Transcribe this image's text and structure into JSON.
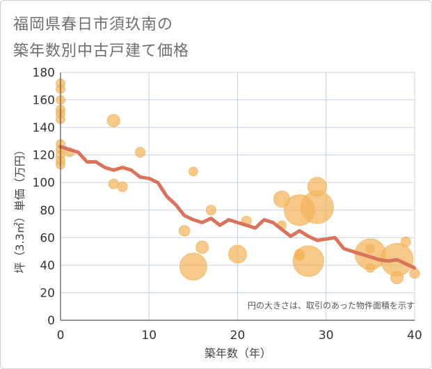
{
  "title_line1": "福岡県春日市須玖南の",
  "title_line2": "築年数別中古戸建て価格",
  "chart_data": {
    "type": "scatter",
    "xlabel": "築年数（年）",
    "ylabel": "坪（3.3㎡）単価（万円）",
    "xlim": [
      0,
      40
    ],
    "ylim": [
      0,
      180
    ],
    "xticks": [
      "0",
      "10",
      "20",
      "30",
      "40"
    ],
    "yticks": [
      "0",
      "20",
      "40",
      "60",
      "80",
      "100",
      "120",
      "140",
      "160",
      "180"
    ],
    "grid": true,
    "note": "円の大きさは、取引のあった物件面積を示す",
    "colors": {
      "bubble": "#f3b45a",
      "line": "#d9735a",
      "grid": "#c5d3e2"
    },
    "bubbles": [
      {
        "x": 0,
        "y": 172,
        "s": 1
      },
      {
        "x": 0,
        "y": 168,
        "s": 1
      },
      {
        "x": 0,
        "y": 160,
        "s": 1
      },
      {
        "x": 0,
        "y": 153,
        "s": 1
      },
      {
        "x": 0,
        "y": 150,
        "s": 1
      },
      {
        "x": 0,
        "y": 146,
        "s": 1
      },
      {
        "x": 0,
        "y": 128,
        "s": 1
      },
      {
        "x": 0,
        "y": 124,
        "s": 1
      },
      {
        "x": 0,
        "y": 120,
        "s": 1
      },
      {
        "x": 0,
        "y": 116,
        "s": 1
      },
      {
        "x": 0,
        "y": 113,
        "s": 1
      },
      {
        "x": 1,
        "y": 122,
        "s": 1
      },
      {
        "x": 6,
        "y": 145,
        "s": 1.4
      },
      {
        "x": 6,
        "y": 99,
        "s": 1.1
      },
      {
        "x": 7,
        "y": 97,
        "s": 1.1
      },
      {
        "x": 9,
        "y": 122,
        "s": 1.1
      },
      {
        "x": 14,
        "y": 65,
        "s": 1.2
      },
      {
        "x": 15,
        "y": 108,
        "s": 1
      },
      {
        "x": 15,
        "y": 39,
        "s": 3
      },
      {
        "x": 16,
        "y": 53,
        "s": 1.4
      },
      {
        "x": 17,
        "y": 80,
        "s": 1.1
      },
      {
        "x": 20,
        "y": 48,
        "s": 2
      },
      {
        "x": 21,
        "y": 72,
        "s": 1.1
      },
      {
        "x": 25,
        "y": 88,
        "s": 1.8
      },
      {
        "x": 25,
        "y": 69,
        "s": 1
      },
      {
        "x": 27,
        "y": 80,
        "s": 3.4
      },
      {
        "x": 27,
        "y": 47,
        "s": 1.1
      },
      {
        "x": 27,
        "y": 48,
        "s": 1.1
      },
      {
        "x": 28,
        "y": 43,
        "s": 3.4
      },
      {
        "x": 29,
        "y": 97,
        "s": 2.1
      },
      {
        "x": 29,
        "y": 82,
        "s": 3.6
      },
      {
        "x": 35,
        "y": 52,
        "s": 1
      },
      {
        "x": 35,
        "y": 48,
        "s": 3.4
      },
      {
        "x": 35,
        "y": 38,
        "s": 1
      },
      {
        "x": 38,
        "y": 44,
        "s": 3.6
      },
      {
        "x": 38,
        "y": 31,
        "s": 1.4
      },
      {
        "x": 39,
        "y": 57,
        "s": 1.1
      },
      {
        "x": 40,
        "y": 34,
        "s": 1.1
      }
    ],
    "trend": {
      "x": [
        0,
        1,
        2,
        3,
        4,
        5,
        6,
        7,
        8,
        9,
        10,
        11,
        12,
        13,
        14,
        15,
        16,
        17,
        18,
        19,
        20,
        21,
        22,
        23,
        24,
        25,
        26,
        27,
        28,
        29,
        30,
        31,
        32,
        33,
        34,
        35,
        36,
        37,
        38,
        39,
        40
      ],
      "y": [
        126,
        124,
        122,
        115,
        115,
        111,
        109,
        111,
        109,
        104,
        103,
        100,
        90,
        84,
        76,
        73,
        71,
        74,
        69,
        73,
        71,
        69,
        67,
        73,
        71,
        66,
        61,
        65,
        61,
        58,
        59,
        60,
        52,
        50,
        48,
        46,
        44,
        43,
        44,
        41,
        38
      ]
    }
  }
}
